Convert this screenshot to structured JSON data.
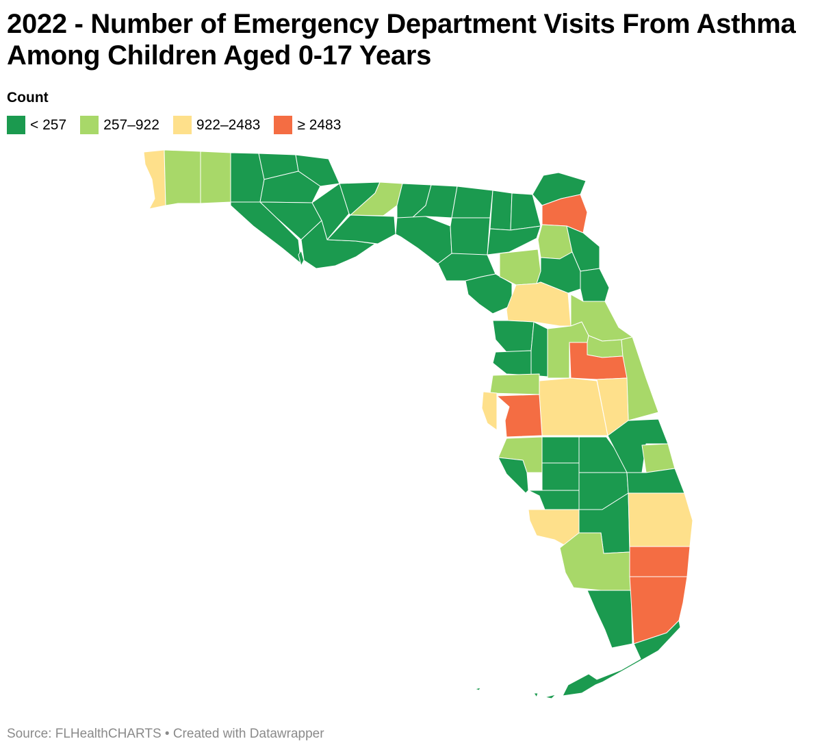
{
  "title": "2022 - Number of Emergency Department Visits From Asthma Among Children Aged 0-17 Years",
  "legend": {
    "title": "Count",
    "items": [
      {
        "label": "< 257",
        "color": "#1b9a4f"
      },
      {
        "label": "257–922",
        "color": "#a8d869"
      },
      {
        "label": "922–2483",
        "color": "#fee08b"
      },
      {
        "label": "≥ 2483",
        "color": "#f46d43"
      }
    ]
  },
  "source": "Source: FLHealthCHARTS • Created with Datawrapper"
}
